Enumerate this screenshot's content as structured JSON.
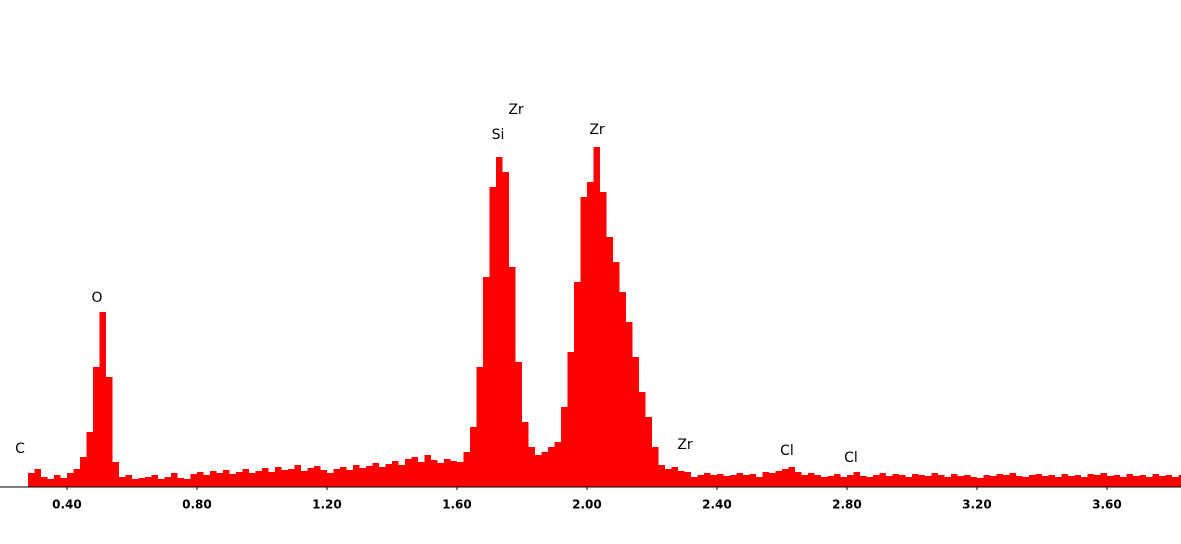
{
  "chart_data": {
    "type": "histogram",
    "color": "#ff0000",
    "annotations": [
      "C",
      "O",
      "Si",
      "Zr",
      "Zr",
      "Zr",
      "Cl",
      "Cl"
    ],
    "xlim": [
      0.194,
      3.828
    ],
    "ylim": [
      0,
      400
    ],
    "xticks": [
      {
        "value": 0.4,
        "label": "0.40"
      },
      {
        "value": 0.8,
        "label": "0.80"
      },
      {
        "value": 1.2,
        "label": "1.20"
      },
      {
        "value": 1.6,
        "label": "1.60"
      },
      {
        "value": 2.0,
        "label": "2.00"
      },
      {
        "value": 2.4,
        "label": "2.40"
      },
      {
        "value": 2.8,
        "label": "2.80"
      },
      {
        "value": 3.2,
        "label": "3.20"
      },
      {
        "value": 3.6,
        "label": "3.60"
      }
    ],
    "bins": [
      0.28,
      0.3,
      0.32,
      0.34,
      0.36,
      0.38,
      0.4,
      0.42,
      0.44,
      0.46,
      0.48,
      0.5,
      0.52,
      0.54,
      0.56,
      0.58,
      0.6,
      0.62,
      0.64,
      0.66,
      0.68,
      0.7,
      0.72,
      0.74,
      0.76,
      0.78,
      0.8,
      0.82,
      0.84,
      0.86,
      0.88,
      0.9,
      0.92,
      0.94,
      0.96,
      0.98,
      1.0,
      1.02,
      1.04,
      1.06,
      1.08,
      1.1,
      1.12,
      1.14,
      1.16,
      1.18,
      1.2,
      1.22,
      1.24,
      1.26,
      1.28,
      1.3,
      1.32,
      1.34,
      1.36,
      1.38,
      1.4,
      1.42,
      1.44,
      1.46,
      1.48,
      1.5,
      1.52,
      1.54,
      1.56,
      1.58,
      1.6,
      1.62,
      1.64,
      1.66,
      1.68,
      1.7,
      1.72,
      1.74,
      1.76,
      1.78,
      1.8,
      1.82,
      1.84,
      1.86,
      1.88,
      1.9,
      1.92,
      1.94,
      1.96,
      1.98,
      2.0,
      2.02,
      2.04,
      2.06,
      2.08,
      2.1,
      2.12,
      2.14,
      2.16,
      2.18,
      2.2,
      2.22,
      2.24,
      2.26,
      2.28,
      2.3,
      2.32,
      2.34,
      2.36,
      2.38,
      2.4,
      2.42,
      2.44,
      2.46,
      2.48,
      2.5,
      2.52,
      2.54,
      2.56,
      2.58,
      2.6,
      2.62,
      2.64,
      2.66,
      2.68,
      2.7,
      2.72,
      2.74,
      2.76,
      2.78,
      2.8,
      2.82,
      2.84,
      2.86,
      2.88,
      2.9,
      2.92,
      2.94,
      2.96,
      2.98,
      3.0,
      3.02,
      3.04,
      3.06,
      3.08,
      3.1,
      3.12,
      3.14,
      3.16,
      3.18,
      3.2,
      3.22,
      3.24,
      3.26,
      3.28,
      3.3,
      3.32,
      3.34,
      3.36,
      3.38,
      3.4,
      3.42,
      3.44,
      3.46,
      3.48,
      3.5,
      3.52,
      3.54,
      3.56,
      3.58,
      3.6,
      3.62,
      3.64,
      3.66,
      3.68,
      3.7,
      3.72,
      3.74,
      3.76,
      3.78,
      3.8,
      3.82,
      3.84
    ],
    "values": [
      14,
      18,
      10,
      8,
      12,
      9,
      14,
      18,
      30,
      55,
      120,
      175,
      110,
      25,
      10,
      12,
      8,
      9,
      10,
      12,
      8,
      10,
      14,
      9,
      8,
      13,
      15,
      12,
      16,
      14,
      17,
      13,
      15,
      18,
      14,
      16,
      19,
      15,
      20,
      17,
      18,
      22,
      16,
      19,
      21,
      17,
      14,
      18,
      20,
      17,
      22,
      19,
      21,
      24,
      20,
      23,
      26,
      22,
      28,
      30,
      25,
      32,
      27,
      24,
      28,
      26,
      25,
      35,
      60,
      120,
      210,
      300,
      330,
      315,
      220,
      125,
      65,
      40,
      32,
      35,
      40,
      45,
      80,
      135,
      205,
      290,
      305,
      340,
      295,
      250,
      225,
      195,
      165,
      130,
      95,
      70,
      40,
      22,
      18,
      20,
      16,
      15,
      10,
      12,
      14,
      12,
      13,
      11,
      12,
      14,
      12,
      13,
      10,
      15,
      14,
      16,
      18,
      20,
      15,
      12,
      14,
      12,
      10,
      11,
      13,
      10,
      12,
      15,
      11,
      10,
      12,
      14,
      11,
      13,
      12,
      10,
      13,
      12,
      11,
      14,
      12,
      10,
      13,
      11,
      12,
      10,
      9,
      12,
      11,
      13,
      12,
      14,
      11,
      10,
      12,
      13,
      11,
      12,
      10,
      13,
      11,
      12,
      10,
      13,
      12,
      14,
      11,
      12,
      10,
      13,
      11,
      12,
      10,
      13,
      11,
      12,
      10,
      12
    ]
  }
}
